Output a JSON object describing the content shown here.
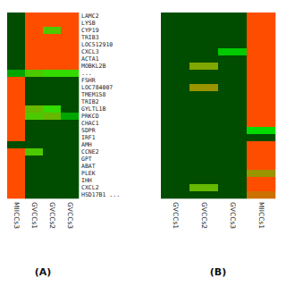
{
  "chart_data": [
    {
      "type": "heatmap",
      "title": "(A)",
      "categories": [
        "MIICCs3",
        "GVCCs1",
        "GVCCs2",
        "GVCCs3"
      ],
      "rows": [
        "LAMC2",
        "LYSB",
        "CYP19",
        "TRIB3",
        "LOC512910",
        "CXCL3",
        "ACTA1",
        "MOBKL2B",
        "...",
        "FSHR",
        "LOC784007",
        "TMEM158",
        "TRIB2",
        "GYLTL1B",
        "PRKCD",
        "CHAC1",
        "SDPR",
        "IRF1",
        "AMH",
        "CCNE2",
        "GPT",
        "ABAT",
        "PLEK",
        "IHH",
        "CXCL2",
        "HSD17B1 ..."
      ],
      "values": [
        [
          -1,
          1,
          1,
          1
        ],
        [
          -1,
          1,
          1,
          1
        ],
        [
          -1,
          1,
          0.3,
          1
        ],
        [
          -1,
          1,
          1,
          1
        ],
        [
          -1,
          1,
          1,
          1
        ],
        [
          -1,
          1,
          1,
          1
        ],
        [
          -1,
          1,
          1,
          1
        ],
        [
          -1,
          1,
          1,
          1
        ],
        [
          -0.5,
          0.3,
          0.2,
          0.2
        ],
        [
          1,
          -1,
          -1,
          -1
        ],
        [
          1,
          -1,
          -1,
          -1
        ],
        [
          1,
          -1,
          -1,
          -1
        ],
        [
          1,
          -1,
          -1,
          -1
        ],
        [
          1,
          0.4,
          0.2,
          -1
        ],
        [
          1,
          0.3,
          0.4,
          -0.5
        ],
        [
          1,
          -1,
          -1,
          -1
        ],
        [
          1,
          -1,
          -1,
          -1
        ],
        [
          1,
          -1,
          -1,
          -1
        ],
        [
          -1,
          -1,
          -1,
          -1
        ],
        [
          1,
          0.3,
          -1,
          -1
        ],
        [
          1,
          -1,
          -1,
          -1
        ],
        [
          1,
          -1,
          -1,
          -1
        ],
        [
          1,
          -1,
          -1,
          -1
        ],
        [
          1,
          -1,
          -1,
          -1
        ],
        [
          1,
          -1,
          -1,
          -1
        ],
        [
          1,
          -1,
          -1,
          -1
        ]
      ]
    },
    {
      "type": "heatmap",
      "title": "(B)",
      "categories": [
        "GVCCs1",
        "GVCCs2",
        "GVCCs3",
        "MIICCs1"
      ],
      "values": [
        [
          -1,
          -1,
          -1,
          1
        ],
        [
          -1,
          -1,
          -1,
          1
        ],
        [
          -1,
          -1,
          -1,
          1
        ],
        [
          -1,
          -1,
          -1,
          1
        ],
        [
          -1,
          -1,
          -1,
          1
        ],
        [
          -1,
          -1,
          -0.3,
          1
        ],
        [
          -1,
          -1,
          -1,
          1
        ],
        [
          -1,
          0.5,
          -1,
          1
        ],
        [
          -1,
          -1,
          -1,
          1
        ],
        [
          -1,
          -1,
          -1,
          1
        ],
        [
          -1,
          0.6,
          -1,
          1
        ],
        [
          -1,
          -1,
          -1,
          1
        ],
        [
          -1,
          -1,
          -1,
          1
        ],
        [
          -1,
          -1,
          -1,
          1
        ],
        [
          -1,
          -1,
          -1,
          1
        ],
        [
          -1,
          -1,
          -1,
          1
        ],
        [
          -1,
          -1,
          -1,
          -0.2
        ],
        [
          -1,
          -1,
          -1,
          -1
        ],
        [
          -1,
          -1,
          -1,
          1
        ],
        [
          -1,
          -1,
          -1,
          1
        ],
        [
          -1,
          -1,
          -1,
          1
        ],
        [
          -1,
          -1,
          -1,
          1
        ],
        [
          -1,
          -1,
          -1,
          0.6
        ],
        [
          -1,
          -1,
          -1,
          1
        ],
        [
          -1,
          0.4,
          -1,
          1
        ],
        [
          -1,
          -1,
          -1,
          0.8
        ]
      ]
    }
  ]
}
